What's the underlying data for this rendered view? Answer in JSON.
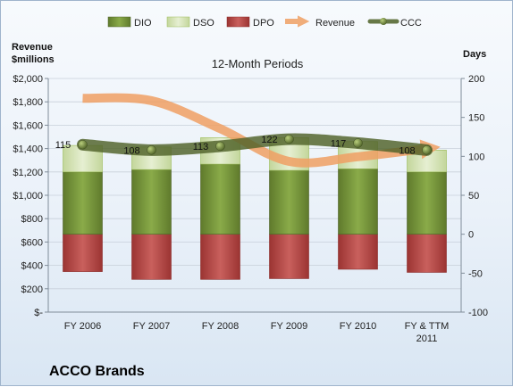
{
  "chart_data": {
    "type": "bar",
    "title": "ACCO Brands",
    "subtitle": "12-Month Periods",
    "y_left_label_line1": "Revenue",
    "y_left_label_line2": "$millions",
    "y_right_label": "Days",
    "categories": [
      {
        "line1": "FY 2006",
        "line2": ""
      },
      {
        "line1": "FY 2007",
        "line2": ""
      },
      {
        "line1": "FY 2008",
        "line2": ""
      },
      {
        "line1": "FY 2009",
        "line2": ""
      },
      {
        "line1": "FY 2010",
        "line2": ""
      },
      {
        "line1": "FY & TTM",
        "line2": "2011"
      }
    ],
    "left_axis": {
      "min": 0,
      "max": 2000,
      "step": 200,
      "ticks": [
        "$-",
        "$200",
        "$400",
        "$600",
        "$800",
        "$1,000",
        "$1,200",
        "$1,400",
        "$1,600",
        "$1,800",
        "$2,000"
      ]
    },
    "right_axis": {
      "min": -100,
      "max": 200,
      "step": 50,
      "ticks": [
        "-100",
        "-50",
        "0",
        "50",
        "100",
        "150",
        "200"
      ]
    },
    "series": [
      {
        "name": "DIO",
        "type": "stacked-bar",
        "axis": "right",
        "color": "#77933c",
        "values": [
          80,
          83,
          90,
          82,
          84,
          80
        ]
      },
      {
        "name": "DSO",
        "type": "stacked-bar",
        "axis": "right",
        "color": "#d7e4bd",
        "values": [
          34,
          29,
          34,
          42,
          35,
          28
        ]
      },
      {
        "name": "DPO",
        "type": "stacked-bar",
        "axis": "right",
        "color": "#c0504d",
        "values": [
          -48,
          -58,
          -58,
          -57,
          -45,
          -49
        ]
      },
      {
        "name": "Revenue",
        "type": "line",
        "axis": "left",
        "color": "#f79646",
        "values": [
          1830,
          1810,
          1570,
          1290,
          1330,
          1400
        ]
      },
      {
        "name": "CCC",
        "type": "line",
        "axis": "right",
        "color": "#4f6228",
        "values": [
          115,
          108,
          113,
          122,
          117,
          108
        ],
        "labels": [
          "115",
          "108",
          "113",
          "122",
          "117",
          "108"
        ]
      }
    ],
    "grid": true,
    "legend_position": "top"
  }
}
